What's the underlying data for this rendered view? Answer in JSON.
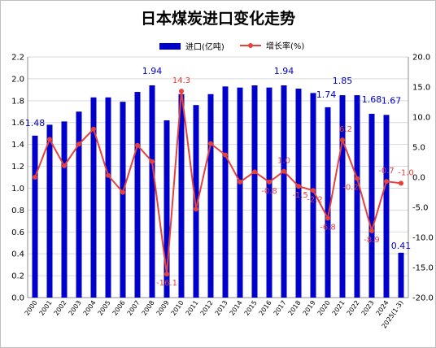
{
  "title": "日本煤炭进口变化走势",
  "legend": {
    "bar_label": "进口(亿吨)",
    "line_label": "增长率(%)"
  },
  "colors": {
    "bar": "#0000cc",
    "line": "#e8403a",
    "label_bar": "#0000cc",
    "label_line": "#e8403a",
    "grid": "#d9d9d9"
  },
  "chart_data": {
    "type": "bar",
    "title": "日本煤炭进口变化走势",
    "categories": [
      "2000",
      "2001",
      "2002",
      "2003",
      "2004",
      "2005",
      "2006",
      "2007",
      "2008",
      "2009",
      "2010",
      "2011",
      "2012",
      "2013",
      "2014",
      "2015",
      "2016",
      "2017",
      "2018",
      "2019",
      "2020",
      "2021",
      "2022",
      "2023",
      "2024",
      "2025(1-3)"
    ],
    "series": [
      {
        "name": "进口(亿吨)",
        "type": "bar",
        "axis": "left",
        "values": [
          1.48,
          1.58,
          1.61,
          1.7,
          1.83,
          1.83,
          1.79,
          1.88,
          1.94,
          1.62,
          1.86,
          1.76,
          1.86,
          1.93,
          1.92,
          1.94,
          1.92,
          1.94,
          1.91,
          1.87,
          1.74,
          1.85,
          1.85,
          1.68,
          1.67,
          0.41
        ]
      },
      {
        "name": "增长率(%)",
        "type": "line",
        "axis": "right",
        "values": [
          0.0,
          6.3,
          1.9,
          5.5,
          8.0,
          0.3,
          -2.5,
          5.3,
          2.6,
          -16.1,
          14.3,
          -5.3,
          5.6,
          3.7,
          -0.8,
          0.9,
          -0.8,
          1.0,
          -1.5,
          -2.2,
          -6.8,
          6.2,
          -0.2,
          -8.9,
          -0.7,
          -1.0
        ]
      }
    ],
    "bar_point_labels": [
      {
        "index": 0,
        "text": "1.48"
      },
      {
        "index": 8,
        "text": "1.94"
      },
      {
        "index": 17,
        "text": "1.94"
      },
      {
        "index": 20,
        "text": "1.74"
      },
      {
        "index": 21,
        "text": "1.85"
      },
      {
        "index": 23,
        "text": "1.68"
      },
      {
        "index": 24,
        "text": "1.67"
      },
      {
        "index": 25,
        "text": "0.41"
      }
    ],
    "line_point_labels": [
      {
        "index": 9,
        "text": "-16.1"
      },
      {
        "index": 10,
        "text": "14.3"
      },
      {
        "index": 16,
        "text": "-0.8"
      },
      {
        "index": 17,
        "text": "1.0"
      },
      {
        "index": 18,
        "text": "-1.5"
      },
      {
        "index": 19,
        "text": "-2.2"
      },
      {
        "index": 20,
        "text": "-6.8"
      },
      {
        "index": 21,
        "text": "6.2"
      },
      {
        "index": 22,
        "text": "-0.2"
      },
      {
        "index": 23,
        "text": "-8.9"
      },
      {
        "index": 24,
        "text": "-0.7"
      },
      {
        "index": 25,
        "text": "-1.0"
      }
    ],
    "y_left": {
      "min": 0,
      "max": 2.2,
      "step": 0.2,
      "tick_labels": [
        "0.0",
        "0.2",
        "0.4",
        "0.6",
        "0.8",
        "1.0",
        "1.2",
        "1.4",
        "1.6",
        "1.8",
        "2.0",
        "2.2"
      ]
    },
    "y_right": {
      "min": -20,
      "max": 20,
      "step": 5,
      "tick_labels": [
        "-20.0",
        "-15.0",
        "-10.0",
        "-5.0",
        "0.0",
        "5.0",
        "10.0",
        "15.0",
        "20.0"
      ]
    },
    "grid": true,
    "legend_position": "top"
  }
}
